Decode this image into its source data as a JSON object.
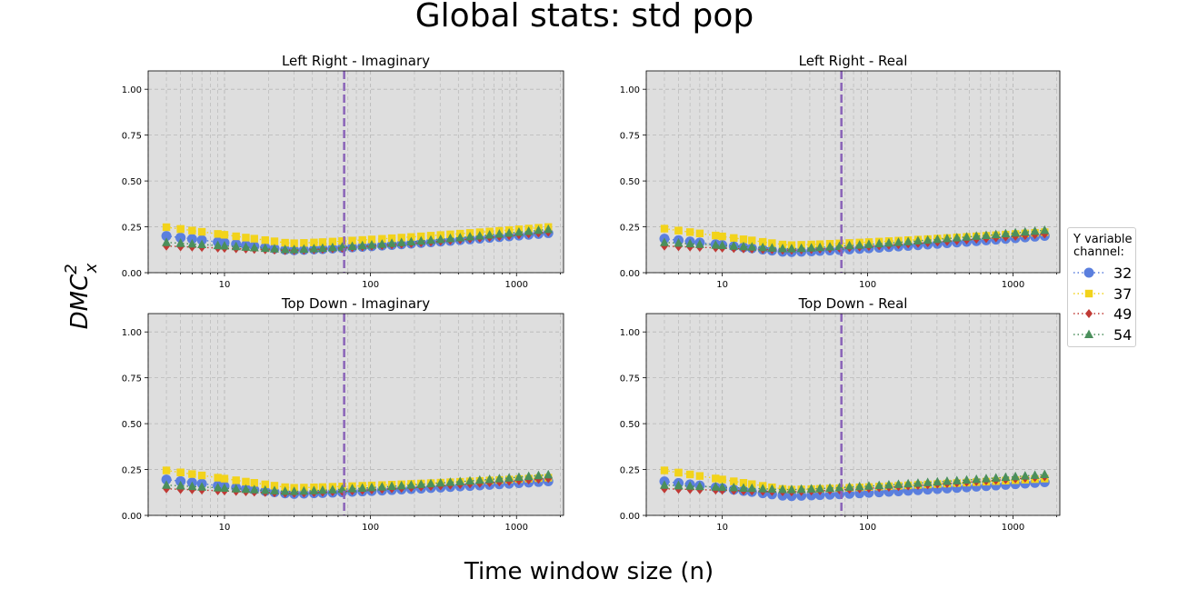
{
  "figure": {
    "title": "Global stats: std pop",
    "xlabel": "Time window size (n)",
    "ylabel_base": "DMC",
    "ylabel_sup": "2",
    "ylabel_sub": "x"
  },
  "legend": {
    "title_line1": "Y variable",
    "title_line2": "channel:",
    "items": [
      {
        "label": "32",
        "color": "#5b7fde",
        "marker": "circle"
      },
      {
        "label": "37",
        "color": "#f2d31b",
        "marker": "square"
      },
      {
        "label": "49",
        "color": "#c03a35",
        "marker": "diamond"
      },
      {
        "label": "54",
        "color": "#4b8f5c",
        "marker": "triangle"
      }
    ]
  },
  "chart_data": [
    {
      "type": "scatter",
      "title": "Left Right - Imaginary",
      "xscale": "log",
      "xlim": [
        3,
        2100
      ],
      "ylim": [
        0,
        1.1
      ],
      "yticks": [
        "0.00",
        "0.25",
        "0.50",
        "0.75",
        "1.00"
      ],
      "xticks": [
        "10",
        "100",
        "1000"
      ],
      "grid": true,
      "vline": 66,
      "series": [
        {
          "name": "32",
          "start": 0.2,
          "min": 0.122,
          "end": 0.215
        },
        {
          "name": "37",
          "start": 0.248,
          "min": 0.16,
          "end": 0.248
        },
        {
          "name": "49",
          "start": 0.145,
          "min": 0.12,
          "end": 0.22
        },
        {
          "name": "54",
          "start": 0.165,
          "min": 0.125,
          "end": 0.235
        }
      ]
    },
    {
      "type": "scatter",
      "title": "Left Right - Real",
      "xscale": "log",
      "xlim": [
        3,
        2100
      ],
      "ylim": [
        0,
        1.1
      ],
      "yticks": [
        "0.00",
        "0.25",
        "0.50",
        "0.75",
        "1.00"
      ],
      "xticks": [
        "10",
        "100",
        "1000"
      ],
      "grid": true,
      "vline": 66,
      "series": [
        {
          "name": "32",
          "start": 0.185,
          "min": 0.112,
          "end": 0.2
        },
        {
          "name": "37",
          "start": 0.24,
          "min": 0.15,
          "end": 0.22
        },
        {
          "name": "49",
          "start": 0.145,
          "min": 0.122,
          "end": 0.21
        },
        {
          "name": "54",
          "start": 0.165,
          "min": 0.13,
          "end": 0.23
        }
      ]
    },
    {
      "type": "scatter",
      "title": "Top Down - Imaginary",
      "xscale": "log",
      "xlim": [
        3,
        2100
      ],
      "ylim": [
        0,
        1.1
      ],
      "yticks": [
        "0.00",
        "0.25",
        "0.50",
        "0.75",
        "1.00"
      ],
      "xticks": [
        "10",
        "100",
        "1000"
      ],
      "grid": true,
      "vline": 66,
      "series": [
        {
          "name": "32",
          "start": 0.195,
          "min": 0.117,
          "end": 0.185
        },
        {
          "name": "37",
          "start": 0.245,
          "min": 0.15,
          "end": 0.205
        },
        {
          "name": "49",
          "start": 0.145,
          "min": 0.12,
          "end": 0.2
        },
        {
          "name": "54",
          "start": 0.165,
          "min": 0.13,
          "end": 0.22
        }
      ]
    },
    {
      "type": "scatter",
      "title": "Top Down - Real",
      "xscale": "log",
      "xlim": [
        3,
        2100
      ],
      "ylim": [
        0,
        1.1
      ],
      "yticks": [
        "0.00",
        "0.25",
        "0.50",
        "0.75",
        "1.00"
      ],
      "xticks": [
        "10",
        "100",
        "1000"
      ],
      "grid": true,
      "vline": 66,
      "series": [
        {
          "name": "32",
          "start": 0.185,
          "min": 0.105,
          "end": 0.18
        },
        {
          "name": "37",
          "start": 0.245,
          "min": 0.14,
          "end": 0.2
        },
        {
          "name": "49",
          "start": 0.145,
          "min": 0.128,
          "end": 0.21
        },
        {
          "name": "54",
          "start": 0.165,
          "min": 0.14,
          "end": 0.222
        }
      ]
    }
  ]
}
